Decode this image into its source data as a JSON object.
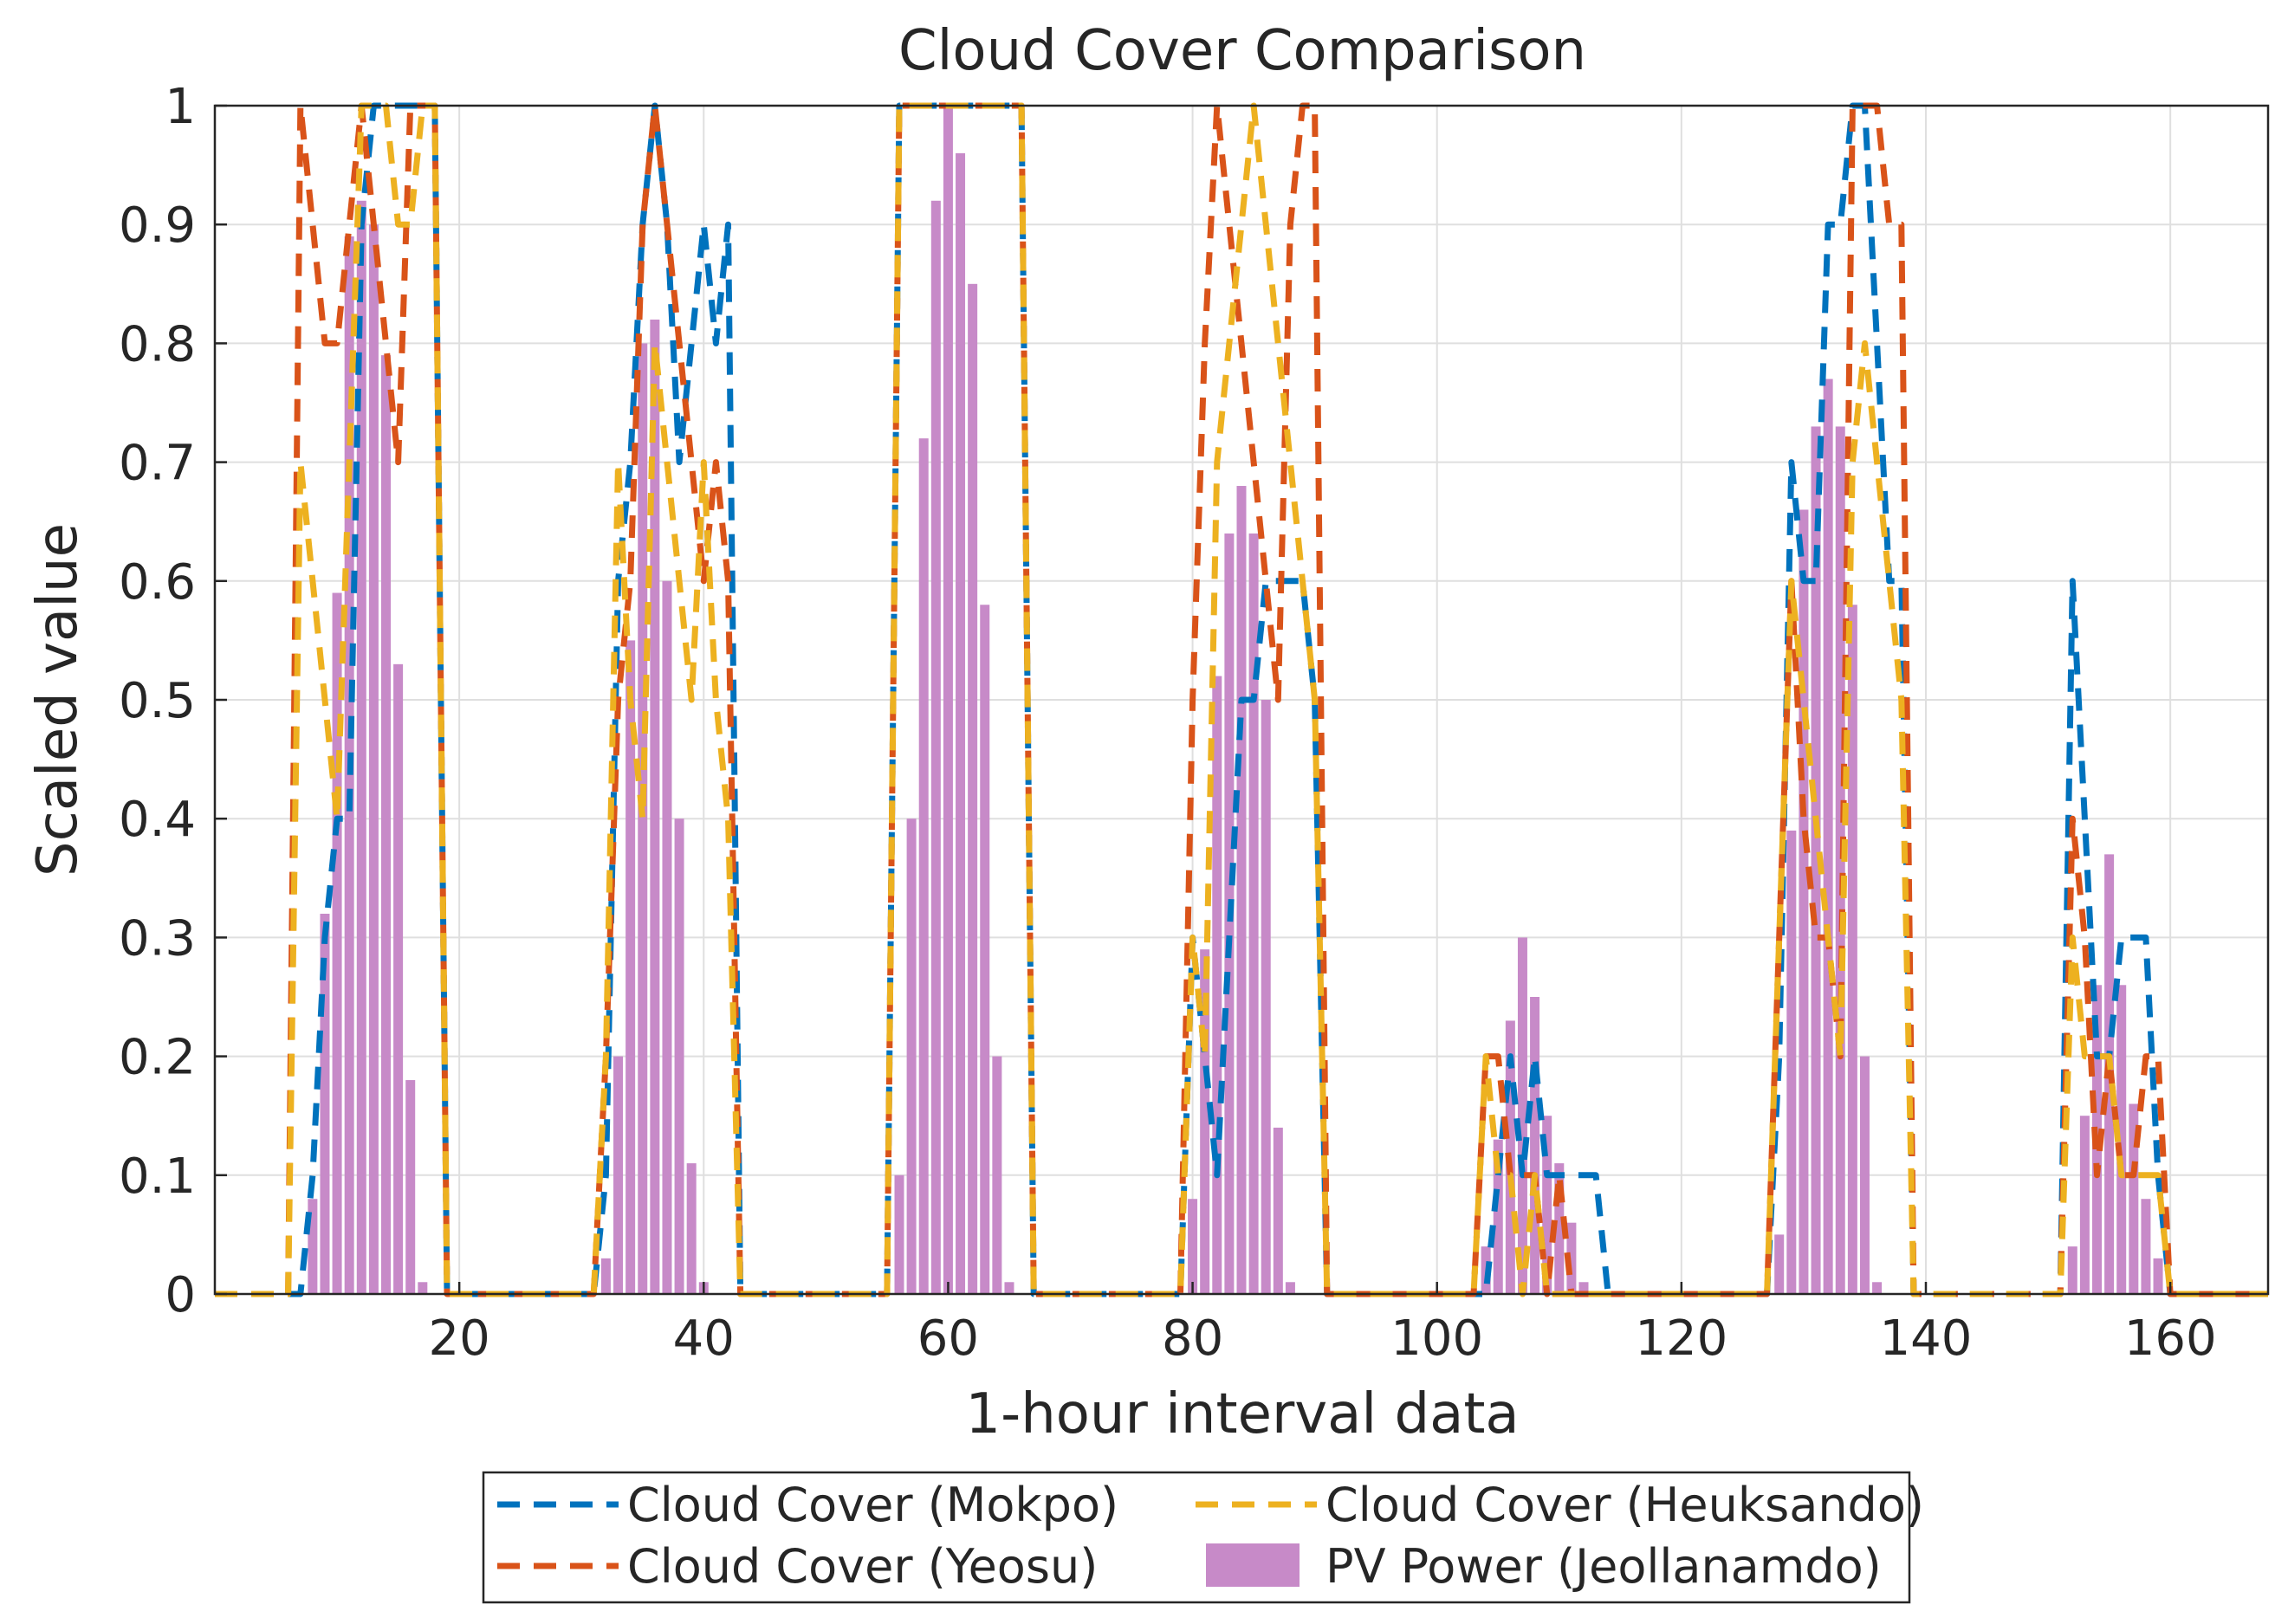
{
  "chart_data": {
    "type": "bar+line",
    "title": "Cloud Cover Comparison",
    "xlabel": "1-hour interval data",
    "ylabel": "Scaled value",
    "xlim": [
      0,
      168
    ],
    "ylim": [
      0,
      1
    ],
    "xticks": [
      20,
      40,
      60,
      80,
      100,
      120,
      140,
      160
    ],
    "yticks": [
      0,
      0.1,
      0.2,
      0.3,
      0.4,
      0.5,
      0.6,
      0.7,
      0.8,
      0.9,
      1
    ],
    "ytick_labels": [
      "0",
      "0.1",
      "0.2",
      "0.3",
      "0.4",
      "0.5",
      "0.6",
      "0.7",
      "0.8",
      "0.9",
      "1"
    ],
    "xtick_labels": [
      "20",
      "40",
      "60",
      "80",
      "100",
      "120",
      "140",
      "160"
    ],
    "grid": true,
    "legend_position": "bottom",
    "colors": {
      "mokpo": "#0072BD",
      "yeosu": "#D95319",
      "heuksando": "#EDB120",
      "pv": "#C78AC8"
    },
    "legend": [
      {
        "key": "mokpo",
        "label": "Cloud Cover (Mokpo)",
        "style": "dashed"
      },
      {
        "key": "heuksando",
        "label": "Cloud Cover (Heuksando)",
        "style": "dashed"
      },
      {
        "key": "yeosu",
        "label": "Cloud Cover (Yeosu)",
        "style": "dashed"
      },
      {
        "key": "pv",
        "label": "PV Power (Jeollanamdo)",
        "style": "bar"
      }
    ],
    "series": [
      {
        "key": "pv",
        "name": "PV Power (Jeollanamdo)",
        "type": "bar",
        "x": [
          8,
          9,
          10,
          11,
          12,
          13,
          14,
          15,
          16,
          17,
          18,
          32,
          33,
          34,
          35,
          36,
          37,
          38,
          39,
          40,
          41,
          42,
          56,
          57,
          58,
          59,
          60,
          61,
          62,
          63,
          64,
          65,
          66,
          80,
          81,
          82,
          83,
          84,
          85,
          86,
          87,
          88,
          89,
          90,
          104,
          105,
          106,
          107,
          108,
          109,
          110,
          111,
          112,
          113,
          114,
          128,
          129,
          130,
          131,
          132,
          133,
          134,
          135,
          136,
          137,
          138,
          152,
          153,
          154,
          155,
          156,
          157,
          158,
          159,
          160,
          161,
          162
        ],
        "values": [
          0.08,
          0.32,
          0.59,
          0.89,
          0.92,
          0.9,
          0.79,
          0.53,
          0.18,
          0.01,
          0,
          0.03,
          0.2,
          0.55,
          0.8,
          0.82,
          0.6,
          0.4,
          0.11,
          0.01,
          0,
          0,
          0.1,
          0.4,
          0.72,
          0.92,
          1.0,
          0.96,
          0.85,
          0.58,
          0.2,
          0.01,
          0,
          0.08,
          0.29,
          0.52,
          0.64,
          0.68,
          0.64,
          0.5,
          0.14,
          0.01,
          0,
          0,
          0.04,
          0.13,
          0.23,
          0.3,
          0.25,
          0.15,
          0.11,
          0.06,
          0.01,
          0,
          0,
          0.05,
          0.39,
          0.66,
          0.73,
          0.77,
          0.73,
          0.58,
          0.2,
          0.01,
          0,
          0,
          0.04,
          0.15,
          0.26,
          0.37,
          0.26,
          0.16,
          0.08,
          0.03,
          0,
          0,
          0
        ]
      },
      {
        "key": "mokpo",
        "name": "Cloud Cover (Mokpo)",
        "type": "line",
        "x": [
          0,
          7,
          8,
          9,
          10,
          11,
          12,
          13,
          14,
          15,
          16,
          17,
          18,
          19,
          30,
          31,
          32,
          33,
          34,
          35,
          36,
          37,
          38,
          39,
          40,
          41,
          42,
          43,
          54,
          55,
          56,
          57,
          58,
          59,
          60,
          61,
          62,
          63,
          64,
          65,
          66,
          67,
          78,
          79,
          80,
          81,
          82,
          83,
          84,
          85,
          86,
          87,
          88,
          89,
          90,
          91,
          102,
          103,
          104,
          105,
          106,
          107,
          108,
          109,
          110,
          111,
          112,
          113,
          114,
          126,
          127,
          128,
          129,
          130,
          131,
          132,
          133,
          134,
          135,
          136,
          137,
          138,
          139,
          150,
          151,
          152,
          153,
          154,
          155,
          156,
          157,
          158,
          159,
          160,
          161,
          162,
          168
        ],
        "y": [
          0,
          0,
          0.1,
          0.3,
          0.4,
          0.4,
          0.9,
          1,
          1,
          1,
          1,
          1,
          1,
          0,
          0,
          0,
          0.1,
          0.6,
          0.7,
          0.9,
          1,
          0.9,
          0.7,
          0.8,
          0.9,
          0.8,
          0.9,
          0,
          0,
          0,
          1,
          1,
          1,
          1,
          1,
          1,
          1,
          1,
          1,
          1,
          1,
          0,
          0,
          0,
          0.3,
          0.2,
          0.1,
          0.3,
          0.5,
          0.5,
          0.6,
          0.6,
          0.6,
          0.6,
          0.5,
          0,
          0,
          0,
          0,
          0.1,
          0.2,
          0.1,
          0.2,
          0.1,
          0.1,
          0.1,
          0.1,
          0.1,
          0,
          0,
          0,
          0.2,
          0.7,
          0.6,
          0.6,
          0.9,
          0.9,
          1,
          1,
          0.8,
          0.6,
          0.6,
          0,
          0,
          0,
          0.6,
          0.4,
          0.2,
          0.2,
          0.3,
          0.3,
          0.3,
          0.1,
          0,
          0,
          0,
          0
        ]
      },
      {
        "key": "yeosu",
        "name": "Cloud Cover (Yeosu)",
        "type": "line",
        "x": [
          0,
          6,
          7,
          8,
          9,
          10,
          11,
          12,
          13,
          14,
          15,
          16,
          17,
          18,
          19,
          30,
          31,
          32,
          33,
          34,
          35,
          36,
          37,
          38,
          39,
          40,
          41,
          42,
          43,
          54,
          55,
          56,
          57,
          58,
          59,
          60,
          61,
          62,
          63,
          64,
          65,
          66,
          67,
          78,
          79,
          80,
          81,
          82,
          83,
          84,
          85,
          86,
          87,
          88,
          89,
          90,
          91,
          102,
          103,
          104,
          105,
          106,
          107,
          108,
          109,
          110,
          111,
          112,
          113,
          114,
          126,
          127,
          128,
          129,
          130,
          131,
          132,
          133,
          134,
          135,
          136,
          137,
          138,
          139,
          150,
          151,
          152,
          153,
          154,
          155,
          156,
          157,
          158,
          159,
          160,
          161,
          162,
          168
        ],
        "y": [
          0,
          0,
          1,
          0.9,
          0.8,
          0.8,
          0.9,
          1,
          0.9,
          0.8,
          0.7,
          1,
          1,
          1,
          0,
          0,
          0,
          0.2,
          0.5,
          0.6,
          0.9,
          1,
          0.9,
          0.8,
          0.7,
          0.6,
          0.7,
          0.6,
          0,
          0,
          0,
          1,
          1,
          1,
          1,
          1,
          1,
          1,
          1,
          1,
          1,
          1,
          0,
          0,
          0,
          0.5,
          0.8,
          1,
          0.9,
          0.8,
          0.7,
          0.6,
          0.5,
          0.9,
          1,
          1,
          0,
          0,
          0,
          0.2,
          0.2,
          0.1,
          0.1,
          0.1,
          0,
          0.1,
          0,
          0,
          0,
          0,
          0,
          0,
          0.3,
          0.6,
          0.4,
          0.3,
          0.3,
          0.2,
          1,
          1,
          1,
          0.9,
          0.9,
          0,
          0,
          0,
          0.4,
          0.3,
          0.1,
          0.2,
          0.1,
          0.1,
          0.2,
          0.2,
          0,
          0,
          0,
          0
        ]
      },
      {
        "key": "heuksando",
        "name": "Cloud Cover (Heuksando)",
        "type": "line",
        "x": [
          0,
          6,
          7,
          8,
          9,
          10,
          11,
          12,
          13,
          14,
          15,
          16,
          17,
          18,
          19,
          30,
          31,
          32,
          33,
          34,
          35,
          36,
          37,
          38,
          39,
          40,
          41,
          42,
          43,
          54,
          55,
          56,
          57,
          58,
          59,
          60,
          61,
          62,
          63,
          64,
          65,
          66,
          67,
          78,
          79,
          80,
          81,
          82,
          83,
          84,
          85,
          86,
          87,
          88,
          89,
          90,
          91,
          102,
          103,
          104,
          105,
          106,
          107,
          108,
          109,
          110,
          111,
          112,
          113,
          114,
          126,
          127,
          128,
          129,
          130,
          131,
          132,
          133,
          134,
          135,
          136,
          137,
          138,
          139,
          150,
          151,
          152,
          153,
          154,
          155,
          156,
          157,
          158,
          159,
          160,
          161,
          162,
          168
        ],
        "y": [
          0,
          0,
          0.7,
          0.6,
          0.5,
          0.4,
          0.7,
          1,
          1,
          1,
          0.9,
          0.9,
          1,
          1,
          0,
          0,
          0,
          0.2,
          0.7,
          0.5,
          0.4,
          0.8,
          0.7,
          0.6,
          0.5,
          0.7,
          0.5,
          0.4,
          0,
          0,
          0,
          1,
          1,
          1,
          1,
          1,
          1,
          1,
          1,
          1,
          1,
          1,
          0,
          0,
          0,
          0.3,
          0.2,
          0.7,
          0.8,
          0.9,
          1,
          0.9,
          0.8,
          0.7,
          0.6,
          0.5,
          0,
          0,
          0,
          0.2,
          0.1,
          0.1,
          0,
          0.1,
          0,
          0,
          0,
          0,
          0,
          0,
          0,
          0,
          0.3,
          0.6,
          0.5,
          0.4,
          0.3,
          0.2,
          0.7,
          0.8,
          0.7,
          0.6,
          0.5,
          0,
          0,
          0,
          0.3,
          0.2,
          0.2,
          0.2,
          0.1,
          0.1,
          0.1,
          0.1,
          0,
          0,
          0,
          0
        ]
      }
    ]
  }
}
